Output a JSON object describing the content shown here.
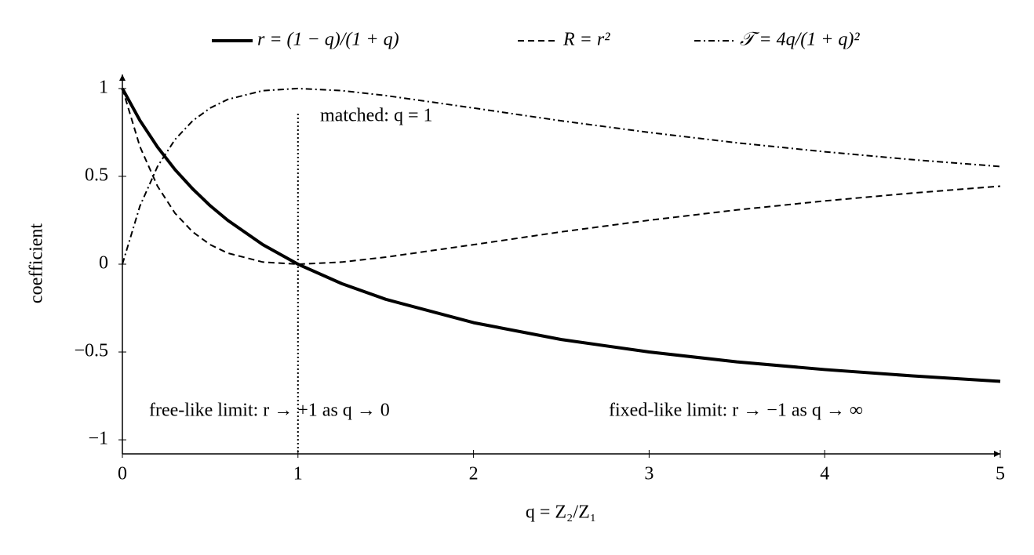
{
  "chart_data": {
    "type": "line",
    "x_label": "q = Z₂/Z₁",
    "y_label": "coefficient",
    "x": [
      0,
      0.1,
      0.2,
      0.3,
      0.4,
      0.5,
      0.6,
      0.8,
      1,
      1.25,
      1.5,
      2,
      2.5,
      3,
      3.5,
      4,
      4.5,
      5
    ],
    "series": [
      {
        "name": "r = (1 − q)/(1 + q)",
        "color": "#000000",
        "style": "solid",
        "values": [
          1,
          0.818,
          0.667,
          0.538,
          0.429,
          0.333,
          0.25,
          0.111,
          0,
          -0.111,
          -0.2,
          -0.333,
          -0.429,
          -0.5,
          -0.556,
          -0.6,
          -0.636,
          -0.667
        ]
      },
      {
        "name": "R = r²",
        "color": "#000000",
        "style": "dashed",
        "values": [
          1,
          0.669,
          0.444,
          0.29,
          0.184,
          0.111,
          0.063,
          0.012,
          0,
          0.012,
          0.04,
          0.111,
          0.184,
          0.25,
          0.309,
          0.36,
          0.405,
          0.444
        ]
      },
      {
        "name": "𝒯 = 4q/(1 + q)²",
        "color": "#000000",
        "style": "dashdot",
        "values": [
          0,
          0.331,
          0.556,
          0.71,
          0.816,
          0.889,
          0.938,
          0.988,
          1,
          0.988,
          0.96,
          0.889,
          0.816,
          0.75,
          0.691,
          0.64,
          0.595,
          0.556
        ]
      }
    ],
    "xlim": [
      0,
      5
    ],
    "xticks": [
      0,
      1,
      2,
      3,
      4,
      5
    ],
    "ylim": [
      -1.08,
      1.08
    ],
    "yticks": [
      {
        "value": -1,
        "label": "−1"
      },
      {
        "value": -0.5,
        "label": "−0.5"
      },
      0,
      0.5,
      1
    ],
    "vline": 1,
    "annotations": [
      "matched: q = 1",
      "free-like limit: r → +1 as q → 0",
      "fixed-like limit: r → −1 as q → ∞"
    ],
    "legend": "top",
    "grid": false
  }
}
